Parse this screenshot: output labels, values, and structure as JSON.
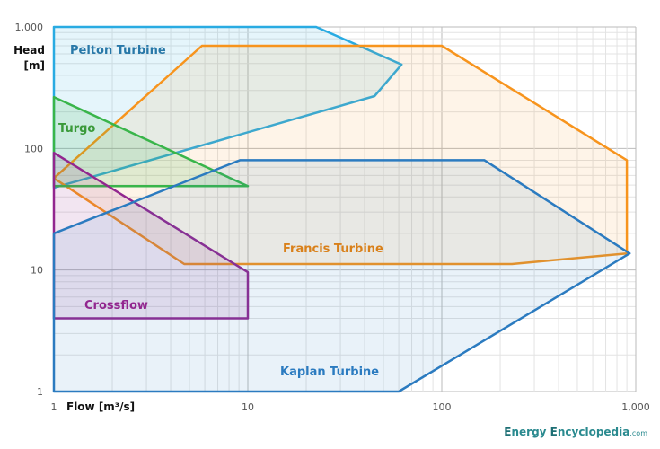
{
  "chart_data": {
    "type": "area",
    "xlabel": "Flow [m³/s]",
    "ylabel_line1": "Head",
    "ylabel_line2": "[m]",
    "x_scale": "log",
    "y_scale": "log",
    "xlim": [
      1,
      1000
    ],
    "ylim": [
      1,
      1000
    ],
    "grid": true,
    "x_ticks": [
      "1",
      "10",
      "100",
      "1,000"
    ],
    "y_ticks": [
      "1",
      "10",
      "100",
      "1,000"
    ],
    "series": [
      {
        "name": "Pelton Turbine",
        "color": "#29abe2",
        "label_color": "#2878a8",
        "points": [
          [
            1,
            1000
          ],
          [
            22.5,
            1000
          ],
          [
            62,
            490
          ],
          [
            45,
            270
          ],
          [
            1,
            47.5
          ]
        ]
      },
      {
        "name": "Francis Turbine",
        "color": "#f7941d",
        "label_color": "#d9801a",
        "points": [
          [
            1,
            57
          ],
          [
            5.8,
            700
          ],
          [
            100,
            700
          ],
          [
            900,
            80
          ],
          [
            900,
            13.7
          ],
          [
            230,
            11.2
          ],
          [
            4.7,
            11.2
          ]
        ]
      },
      {
        "name": "Turgo",
        "color": "#39b54a",
        "label_color": "#3a9a3a",
        "points": [
          [
            1,
            265
          ],
          [
            10,
            49
          ],
          [
            1,
            49
          ]
        ]
      },
      {
        "name": "Crossflow",
        "color": "#92278f",
        "label_color": "#92278f",
        "points": [
          [
            1,
            92
          ],
          [
            10,
            9.6
          ],
          [
            10,
            4
          ],
          [
            1,
            4
          ]
        ]
      },
      {
        "name": "Kaplan Turbine",
        "color": "#2b7bc0",
        "label_color": "#2b7bc0",
        "points": [
          [
            1,
            20
          ],
          [
            9.1,
            80
          ],
          [
            166,
            80
          ],
          [
            930,
            13.7
          ],
          [
            60,
            1
          ],
          [
            1,
            1
          ]
        ]
      }
    ]
  },
  "brand": {
    "e1": "E",
    "w1": "nergy ",
    "e2": "E",
    "w2": "ncyclopedia",
    "suffix": ".com"
  }
}
